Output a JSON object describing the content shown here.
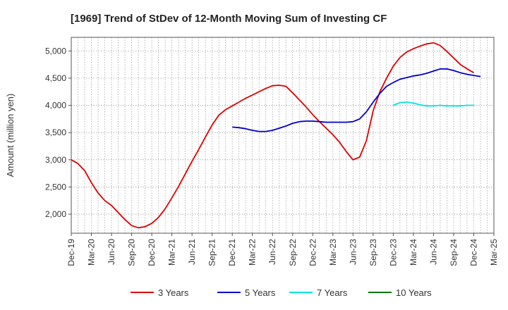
{
  "chart_data": {
    "type": "line",
    "title": "[1969]  Trend of StDev of 12-Month Moving Sum of Investing CF",
    "xlabel": "",
    "ylabel": "Amount (million yen)",
    "ylim": [
      1650,
      5250
    ],
    "yticks": [
      2000,
      2500,
      3000,
      3500,
      4000,
      4500,
      5000
    ],
    "ytick_labels": [
      "2,000",
      "2,500",
      "3,000",
      "3,500",
      "4,000",
      "4,500",
      "5,000"
    ],
    "x_start": "Dec-19",
    "xtick_labels": [
      "Dec-19",
      "Mar-20",
      "Jun-20",
      "Sep-20",
      "Dec-20",
      "Mar-21",
      "Jun-21",
      "Sep-21",
      "Dec-21",
      "Mar-22",
      "Jun-22",
      "Sep-22",
      "Dec-22",
      "Mar-23",
      "Jun-23",
      "Sep-23",
      "Dec-23",
      "Mar-24",
      "Jun-24",
      "Sep-24",
      "Dec-24",
      "Mar-25"
    ],
    "grid": true,
    "legend_position": "bottom",
    "series": [
      {
        "name": "3 Years",
        "color": "#dd0000",
        "start": "Dec-19",
        "values": [
          3000,
          2930,
          2800,
          2580,
          2390,
          2250,
          2160,
          2030,
          1900,
          1790,
          1750,
          1770,
          1830,
          1940,
          2100,
          2300,
          2510,
          2740,
          2970,
          3190,
          3420,
          3640,
          3820,
          3920,
          3990,
          4060,
          4130,
          4190,
          4250,
          4310,
          4360,
          4370,
          4350,
          4230,
          4100,
          3970,
          3830,
          3700,
          3580,
          3460,
          3320,
          3150,
          3000,
          3050,
          3350,
          3900,
          4250,
          4500,
          4720,
          4880,
          4980,
          5040,
          5090,
          5130,
          5150,
          5100,
          4990,
          4870,
          4750,
          4670,
          4600
        ]
      },
      {
        "name": "5 Years",
        "color": "#0000cc",
        "start": "Dec-21",
        "values": [
          3600,
          3590,
          3570,
          3540,
          3520,
          3520,
          3540,
          3580,
          3620,
          3670,
          3700,
          3710,
          3710,
          3700,
          3690,
          3690,
          3690,
          3690,
          3700,
          3750,
          3880,
          4060,
          4220,
          4350,
          4420,
          4480,
          4510,
          4540,
          4560,
          4590,
          4630,
          4670,
          4670,
          4640,
          4600,
          4570,
          4550,
          4530
        ]
      },
      {
        "name": "7 Years",
        "color": "#00e5e5",
        "start": "Dec-23",
        "values": [
          4000,
          4050,
          4060,
          4040,
          4010,
          3990,
          3990,
          4000,
          3990,
          3990,
          3990,
          4000,
          4000
        ]
      },
      {
        "name": "10 Years",
        "color": "#007700",
        "start": "Dec-24",
        "values": []
      }
    ]
  }
}
